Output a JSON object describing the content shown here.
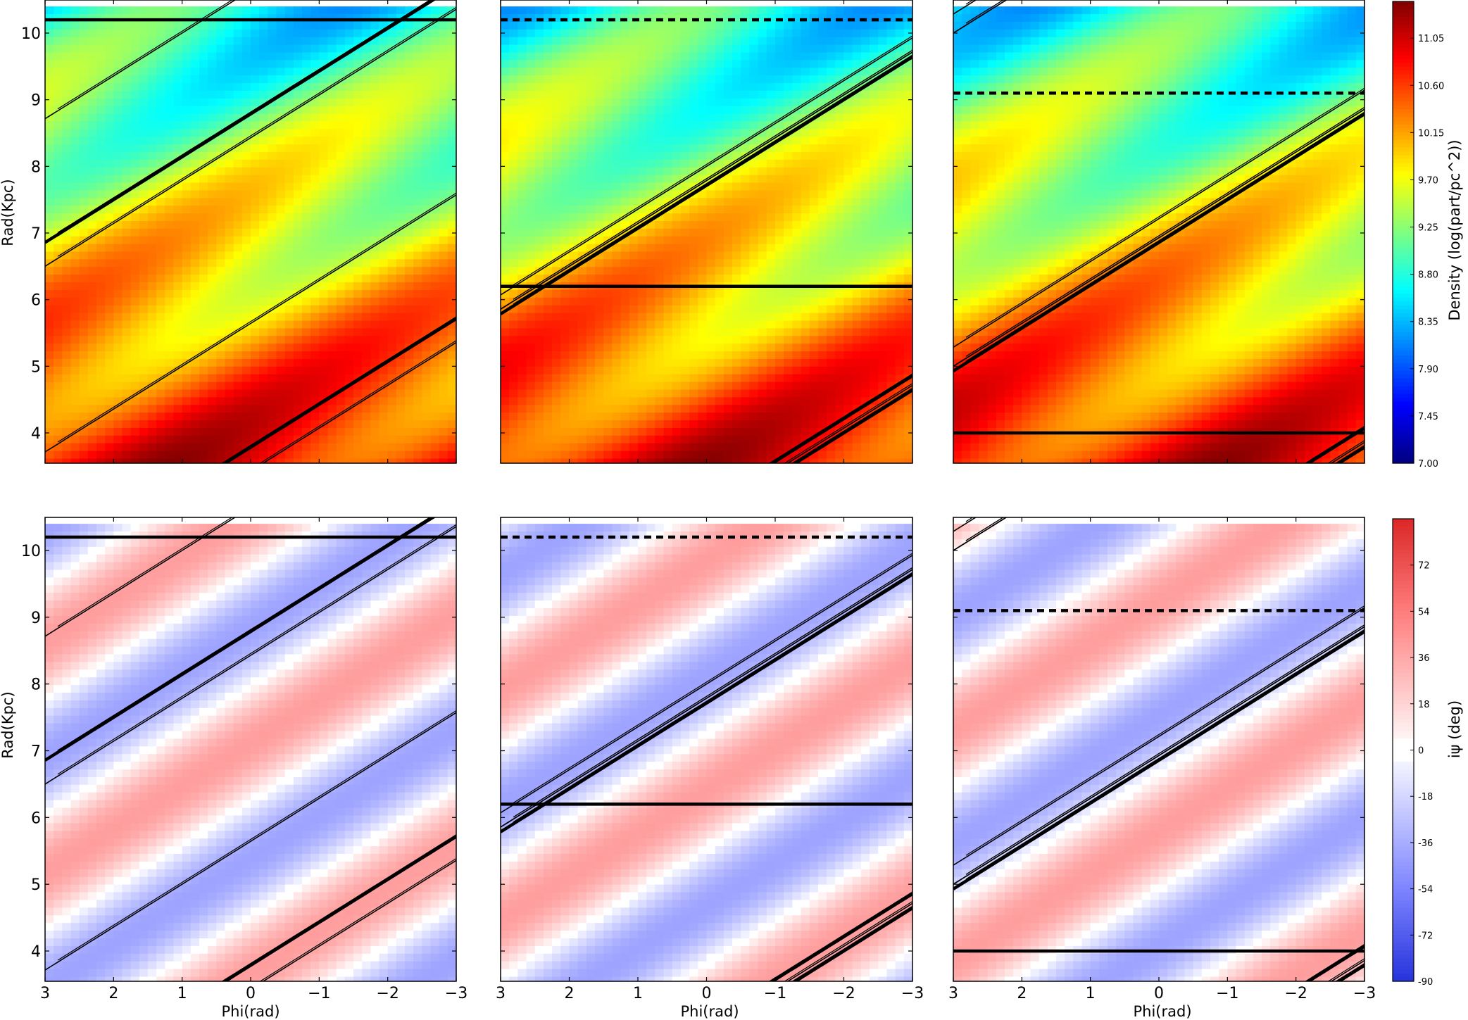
{
  "chart_data": [
    {
      "type": "heatmap",
      "panel": "top-left",
      "ylabel": "Rad(Kpc)",
      "yticks": [
        "4",
        "5",
        "6",
        "7",
        "8",
        "9",
        "10"
      ],
      "ylim": [
        3.5,
        10.4
      ],
      "xlim": [
        3,
        -3
      ],
      "colorbar": "density",
      "horizontal_lines": [
        {
          "y": 10.2,
          "style": "solid"
        }
      ],
      "arms": [
        [
          -0.3,
          10.4,
          6.7
        ],
        [
          6.7,
          10.4,
          13.7
        ],
        [
          -8.2,
          10.4,
          -0.8
        ],
        [
          -5.2,
          10.4,
          2.3
        ]
      ]
    },
    {
      "type": "heatmap",
      "panel": "top-middle",
      "xlim": [
        3,
        -3
      ],
      "colorbar": "density",
      "horizontal_lines": [
        {
          "y": 10.2,
          "style": "dashed"
        },
        {
          "y": 6.2,
          "style": "solid"
        }
      ],
      "arms": [
        [
          -1.8,
          10.4,
          5.3
        ],
        [
          5.2,
          10.4,
          12.3
        ],
        [
          -8.8,
          10.4,
          -1.7
        ],
        [
          -1.5,
          10.4,
          5.6
        ]
      ]
    },
    {
      "type": "heatmap",
      "panel": "top-right",
      "xlim": [
        3,
        -3
      ],
      "colorbar": "density",
      "horizontal_lines": [
        {
          "y": 9.1,
          "style": "dashed"
        },
        {
          "y": 4.0,
          "style": "solid"
        }
      ],
      "arms": [
        [
          -3.0,
          10.4,
          4.1
        ],
        [
          4.0,
          10.4,
          11.1
        ],
        [
          -10.0,
          10.4,
          -2.9
        ],
        [
          -2.6,
          10.4,
          4.5
        ]
      ]
    },
    {
      "type": "heatmap",
      "panel": "bottom-left",
      "ylabel": "Rad(Kpc)",
      "xlabel": "Phi(rad)",
      "yticks": [
        "4",
        "5",
        "6",
        "7",
        "8",
        "9",
        "10"
      ],
      "xticks": [
        "3",
        "2",
        "1",
        "0",
        "−1",
        "−2",
        "−3"
      ],
      "ylim": [
        3.5,
        10.4
      ],
      "xlim": [
        3,
        -3
      ],
      "colorbar": "pitch",
      "horizontal_lines": [
        {
          "y": 10.2,
          "style": "solid"
        }
      ],
      "arms": [
        [
          -0.3,
          10.4,
          6.7
        ],
        [
          6.7,
          10.4,
          13.7
        ],
        [
          -8.2,
          10.4,
          -0.8
        ],
        [
          -5.2,
          10.4,
          2.3
        ]
      ]
    },
    {
      "type": "heatmap",
      "panel": "bottom-middle",
      "xlabel": "Phi(rad)",
      "xticks": [
        "3",
        "2",
        "1",
        "0",
        "−1",
        "−2",
        "−3"
      ],
      "xlim": [
        3,
        -3
      ],
      "colorbar": "pitch",
      "horizontal_lines": [
        {
          "y": 10.2,
          "style": "dashed"
        },
        {
          "y": 6.2,
          "style": "solid"
        }
      ],
      "arms": [
        [
          -1.8,
          10.4,
          5.3
        ],
        [
          5.2,
          10.4,
          12.3
        ],
        [
          -8.8,
          10.4,
          -1.7
        ],
        [
          -1.5,
          10.4,
          5.6
        ]
      ]
    },
    {
      "type": "heatmap",
      "panel": "bottom-right",
      "xlabel": "Phi(rad)",
      "xticks": [
        "3",
        "2",
        "1",
        "0",
        "−1",
        "−2",
        "−3"
      ],
      "xlim": [
        3,
        -3
      ],
      "colorbar": "pitch",
      "horizontal_lines": [
        {
          "y": 9.1,
          "style": "dashed"
        },
        {
          "y": 4.0,
          "style": "solid"
        }
      ],
      "arms": [
        [
          -3.0,
          10.4,
          4.1
        ],
        [
          4.0,
          10.4,
          11.1
        ],
        [
          -10.0,
          10.4,
          -2.9
        ],
        [
          -2.6,
          10.4,
          4.5
        ]
      ]
    }
  ],
  "colorbars": {
    "density": {
      "label": "Density (log(part/pc^2))",
      "ticks": [
        "7.00",
        "7.45",
        "7.90",
        "8.35",
        "8.80",
        "9.25",
        "9.70",
        "10.15",
        "10.60",
        "11.05"
      ],
      "range": [
        7.0,
        11.4
      ],
      "colormap": "jet"
    },
    "pitch": {
      "label": "iψ (deg)",
      "ticks": [
        "-90",
        "-72",
        "-54",
        "-36",
        "-18",
        "0",
        "18",
        "36",
        "54",
        "72"
      ],
      "range": [
        -90,
        90
      ],
      "colormap": "seismic"
    }
  },
  "colors": {
    "density_low": "#00007f",
    "density_mid": "#ffff00",
    "density_high": "#7f0000",
    "pitch_negative": "#2233cc",
    "pitch_positive": "#cc2222"
  }
}
